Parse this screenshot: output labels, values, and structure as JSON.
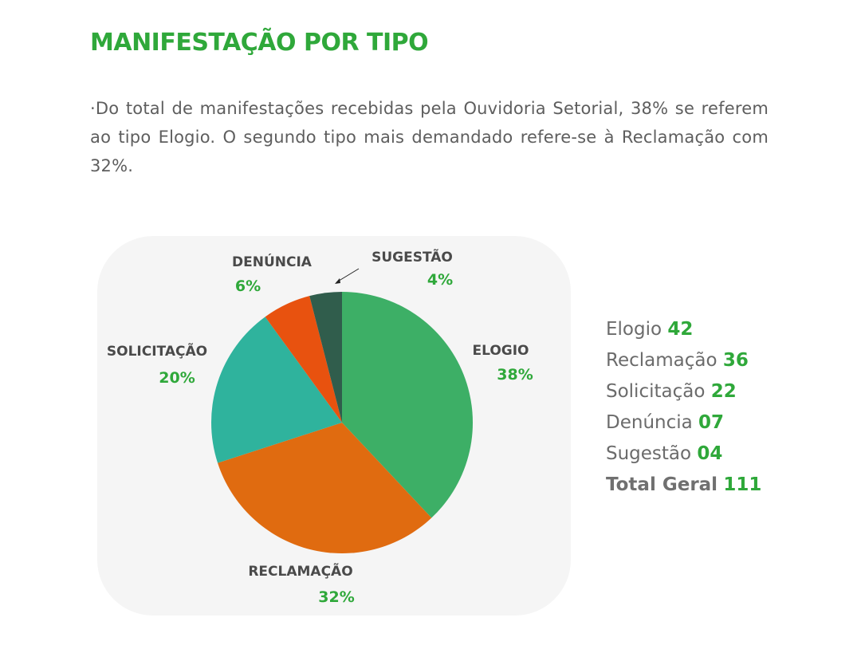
{
  "title": "MANIFESTAÇÃO POR TIPO",
  "intro": "·Do total de manifestações recebidas pela Ouvidoria Setorial, 38% se referem ao tipo Elogio. O segundo tipo mais demandado refere-se à Reclamação com 32%.",
  "chart_data": {
    "type": "pie",
    "title": "",
    "slices": [
      {
        "label": "ELOGIO",
        "value": 38,
        "value_label": "38%",
        "color": "#3daf66"
      },
      {
        "label": "RECLAMAÇÃO",
        "value": 32,
        "value_label": "32%",
        "color": "#e06b10"
      },
      {
        "label": "SOLICITAÇÃO",
        "value": 20,
        "value_label": "20%",
        "color": "#2fb39d"
      },
      {
        "label": "DENÚNCIA",
        "value": 6,
        "value_label": "6%",
        "color": "#e8520f"
      },
      {
        "label": "SUGESTÃO",
        "value": 4,
        "value_label": "4%",
        "color": "#305d4c"
      }
    ]
  },
  "legend": {
    "items": [
      {
        "label": "Elogio",
        "value": "42"
      },
      {
        "label": "Reclamação",
        "value": "36"
      },
      {
        "label": "Solicitação",
        "value": "22"
      },
      {
        "label": "Denúncia",
        "value": "07"
      },
      {
        "label": "Sugestão",
        "value": "04"
      }
    ],
    "total": {
      "label": "Total Geral",
      "value": "111"
    }
  },
  "colors": {
    "accent": "#2fa83a",
    "text": "#5e5e5e",
    "panel": "#f5f5f5"
  }
}
